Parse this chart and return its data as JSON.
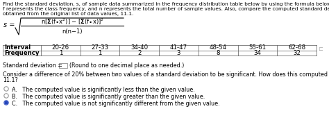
{
  "title_text_line1": "Find the standard deviation, s, of sample data summarized in the frequency distribution table below by using the formula below, where x represents the class midpoint,",
  "title_text_line2": "f represents the class frequency, and n represents the total number of sample values. Also, compare the computed standard deviation to the standard deviation",
  "title_text_line3": "obtained from the original list of data values, 11.1.",
  "intervals": [
    "Interval",
    "20-26",
    "27-33",
    "34-40",
    "41-47",
    "48-54",
    "55-61",
    "62-68"
  ],
  "frequencies": [
    "Frequency",
    "1",
    "1",
    "2",
    "3",
    "8",
    "34",
    "32"
  ],
  "sd_label": "Standard deviation = ",
  "sd_hint": "(Round to one decimal place as needed.)",
  "compare_line1": "Consider a difference of 20% between two values of a standard deviation to be significant. How does this computed value compare with the given standard deviation,",
  "compare_line2": "11.1?",
  "option_a": "A.   The computed value is significantly less than the given value.",
  "option_b": "B.   The computed value is significantly greater than the given value.",
  "option_c": "C.   The computed value is not significantly different from the given value.",
  "selected_option": 2,
  "bg_color": "#ffffff",
  "text_color": "#000000",
  "radio_unsel_color": "#888888",
  "radio_sel_color": "#2244bb",
  "table_line_color": "#555555",
  "font_size_title": 5.3,
  "font_size_formula": 6.5,
  "font_size_table": 6.2,
  "font_size_body": 5.8,
  "font_size_options": 5.8
}
